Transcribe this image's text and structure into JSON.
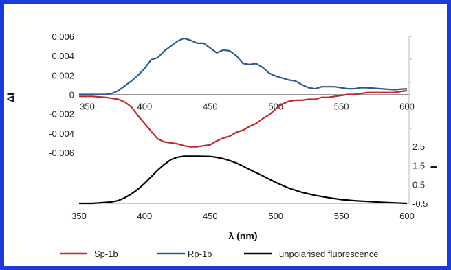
{
  "chart_data": [
    {
      "type": "line",
      "panel": "top",
      "ylabel": "ΔI",
      "xlim": [
        350,
        600
      ],
      "ylim": [
        -0.006,
        0.006
      ],
      "xticks": [
        "350",
        "400",
        "450",
        "500",
        "550",
        "600"
      ],
      "yticks": [
        "0.006",
        "0.004",
        "0.002",
        "0",
        "-0.002",
        "-0.004",
        "-0.006"
      ],
      "series": [
        {
          "name": "Sp-1b",
          "color": "#c0282d",
          "x": [
            350,
            360,
            370,
            380,
            385,
            390,
            395,
            400,
            405,
            410,
            415,
            420,
            425,
            430,
            435,
            440,
            445,
            450,
            455,
            460,
            465,
            470,
            475,
            480,
            485,
            490,
            495,
            500,
            505,
            510,
            515,
            520,
            525,
            530,
            535,
            540,
            545,
            550,
            555,
            560,
            565,
            570,
            580,
            590,
            600
          ],
          "y": [
            -0.0002,
            -0.0002,
            -0.0003,
            -0.0005,
            -0.0008,
            -0.0013,
            -0.0022,
            -0.003,
            -0.0038,
            -0.0046,
            -0.0049,
            -0.005,
            -0.0051,
            -0.0053,
            -0.0054,
            -0.0054,
            -0.0053,
            -0.0052,
            -0.0048,
            -0.0045,
            -0.0043,
            -0.0039,
            -0.0037,
            -0.0033,
            -0.003,
            -0.0025,
            -0.0021,
            -0.0015,
            -0.001,
            -0.0007,
            -0.0006,
            -0.0006,
            -0.0005,
            -0.0005,
            -0.0003,
            -0.0003,
            -0.0002,
            -0.0001,
            0.0,
            0.0,
            0.0001,
            0.0002,
            0.0002,
            0.0002,
            0.0004
          ]
        },
        {
          "name": "Rp-1b",
          "color": "#2e5a8e",
          "x": [
            350,
            360,
            370,
            375,
            380,
            385,
            390,
            395,
            400,
            405,
            410,
            415,
            420,
            425,
            430,
            435,
            440,
            445,
            450,
            455,
            460,
            465,
            470,
            475,
            480,
            485,
            490,
            495,
            500,
            505,
            510,
            515,
            520,
            525,
            530,
            535,
            540,
            545,
            550,
            555,
            560,
            565,
            570,
            580,
            590,
            600
          ],
          "y": [
            0.0,
            0.0,
            0.0,
            0.0001,
            0.0004,
            0.0009,
            0.0014,
            0.002,
            0.0027,
            0.0036,
            0.0038,
            0.0045,
            0.005,
            0.0055,
            0.0058,
            0.0056,
            0.0053,
            0.0053,
            0.0048,
            0.0043,
            0.0046,
            0.0045,
            0.004,
            0.0032,
            0.0031,
            0.0032,
            0.0028,
            0.0022,
            0.0019,
            0.0017,
            0.0015,
            0.0014,
            0.001,
            0.0007,
            0.0006,
            0.0008,
            0.0008,
            0.0008,
            0.0007,
            0.0006,
            0.0006,
            0.0007,
            0.0007,
            0.0006,
            0.0005,
            0.0006
          ]
        }
      ]
    },
    {
      "type": "line",
      "panel": "bottom",
      "xlabel": "λ (nm)",
      "ylabel": "I",
      "xlim": [
        350,
        600
      ],
      "ylim": [
        -0.5,
        2.5
      ],
      "xticks": [
        "350",
        "400",
        "450",
        "500",
        "550",
        "600"
      ],
      "yticks": [
        "2.5",
        "1.5",
        "0.5",
        "-0.5"
      ],
      "series": [
        {
          "name": "unpolarised fluorescence",
          "color": "#000000",
          "x": [
            350,
            360,
            370,
            375,
            380,
            385,
            390,
            395,
            400,
            405,
            410,
            415,
            420,
            425,
            430,
            440,
            450,
            455,
            460,
            465,
            470,
            475,
            480,
            490,
            500,
            510,
            520,
            530,
            540,
            550,
            560,
            570,
            580,
            590,
            600
          ],
          "y": [
            -0.5,
            -0.5,
            -0.45,
            -0.42,
            -0.35,
            -0.2,
            0.0,
            0.25,
            0.55,
            0.9,
            1.25,
            1.55,
            1.8,
            1.93,
            1.98,
            1.98,
            1.97,
            1.92,
            1.85,
            1.75,
            1.62,
            1.46,
            1.28,
            0.95,
            0.6,
            0.3,
            0.08,
            -0.08,
            -0.2,
            -0.3,
            -0.36,
            -0.4,
            -0.44,
            -0.47,
            -0.5
          ]
        }
      ]
    }
  ]
}
